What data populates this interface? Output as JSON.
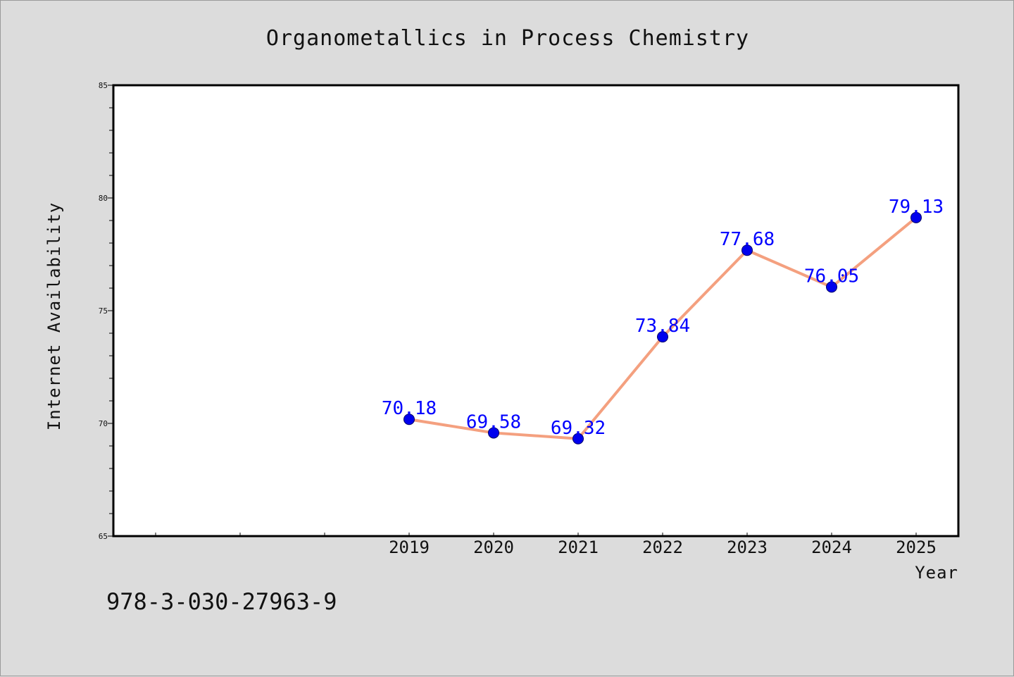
{
  "chart_data": {
    "type": "line",
    "title": "Organometallics in Process Chemistry",
    "xlabel": "Year",
    "ylabel": "Internet Availability",
    "categories": [
      "",
      "",
      "",
      "2019",
      "2020",
      "2021",
      "2022",
      "2023",
      "2024",
      "2025"
    ],
    "series": [
      {
        "values": [
          null,
          null,
          null,
          70.18,
          69.58,
          69.32,
          73.84,
          77.68,
          76.05,
          79.13
        ]
      }
    ],
    "data_labels": [
      "",
      "",
      "",
      "70.18",
      "69.58",
      "69.32",
      "73.84",
      "77.68",
      "76.05",
      "79.13"
    ],
    "ylim": [
      65,
      85
    ],
    "yticks": [
      "65",
      "70",
      "75",
      "80",
      "85"
    ],
    "grid": false,
    "legend": "none",
    "colors": {
      "line": "#f4a07f",
      "marker": "#0000ee",
      "data_label": "#0000ff",
      "plot_background": "#ffffff",
      "page_background": "#dcdcdc"
    }
  },
  "footer": {
    "isbn": "978-3-030-27963-9"
  }
}
